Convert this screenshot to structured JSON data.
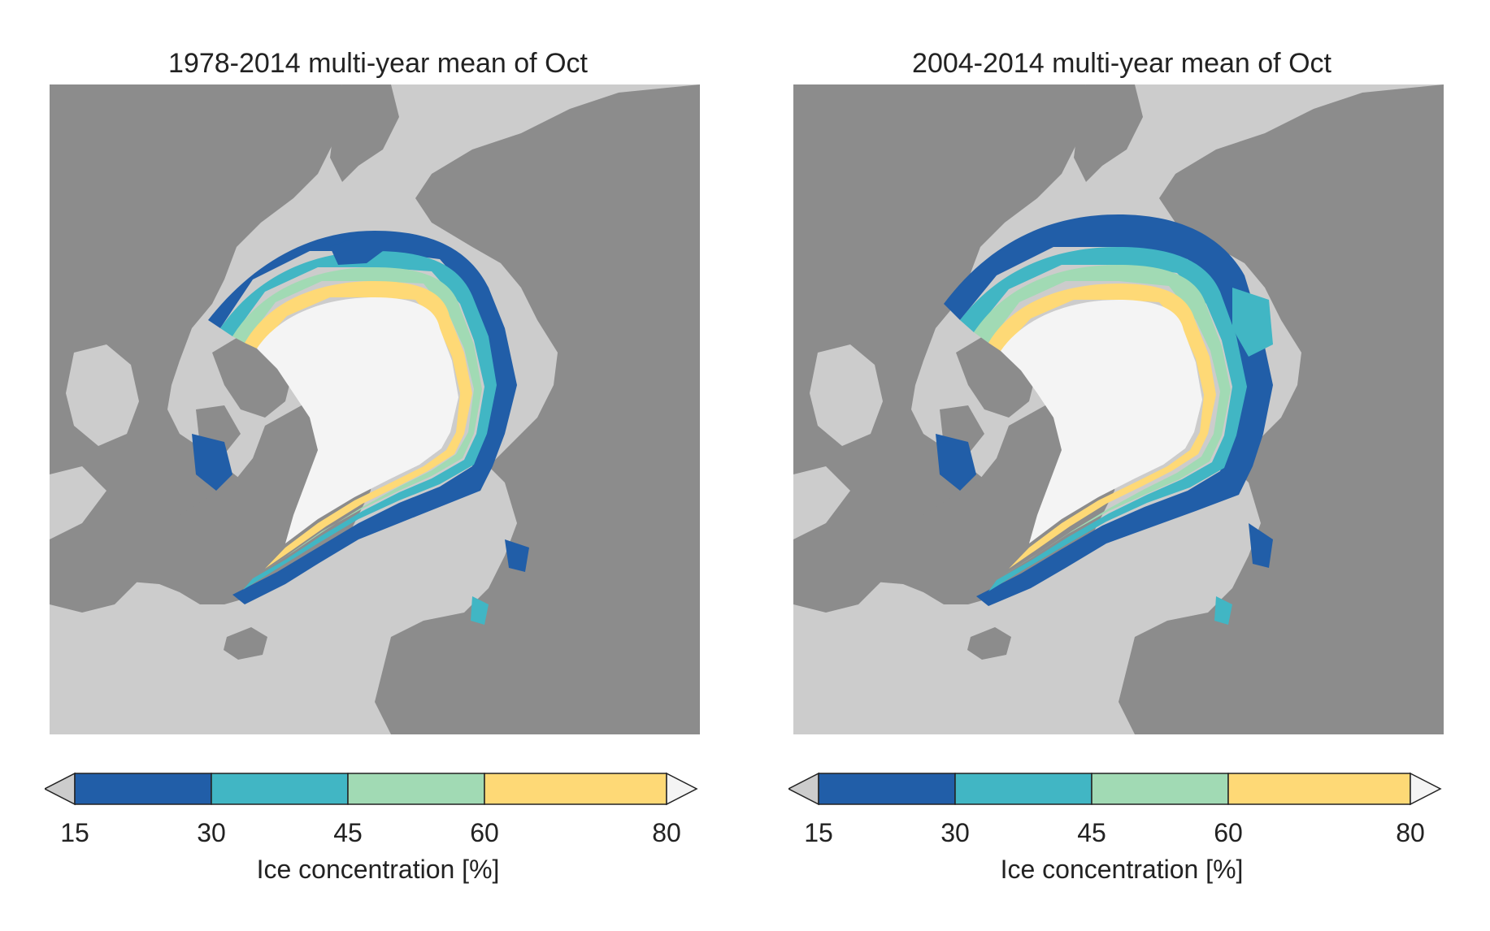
{
  "colors": {
    "ocean": "#cccccc",
    "land": "#8c8c8c",
    "c15_30": "#215ea8",
    "c30_45": "#41b6c4",
    "c45_60": "#a1dab4",
    "c60_80": "#fed976",
    "over80": "#f4f4f4",
    "under15": "#cccccc"
  },
  "colorbar": {
    "ticks": [
      "15",
      "30",
      "45",
      "60",
      "80"
    ],
    "label": "Ice concentration [%]"
  },
  "panels": [
    {
      "title": "1978-2014 multi-year mean of Oct"
    },
    {
      "title": "2004-2014 multi-year mean of Oct"
    }
  ]
}
